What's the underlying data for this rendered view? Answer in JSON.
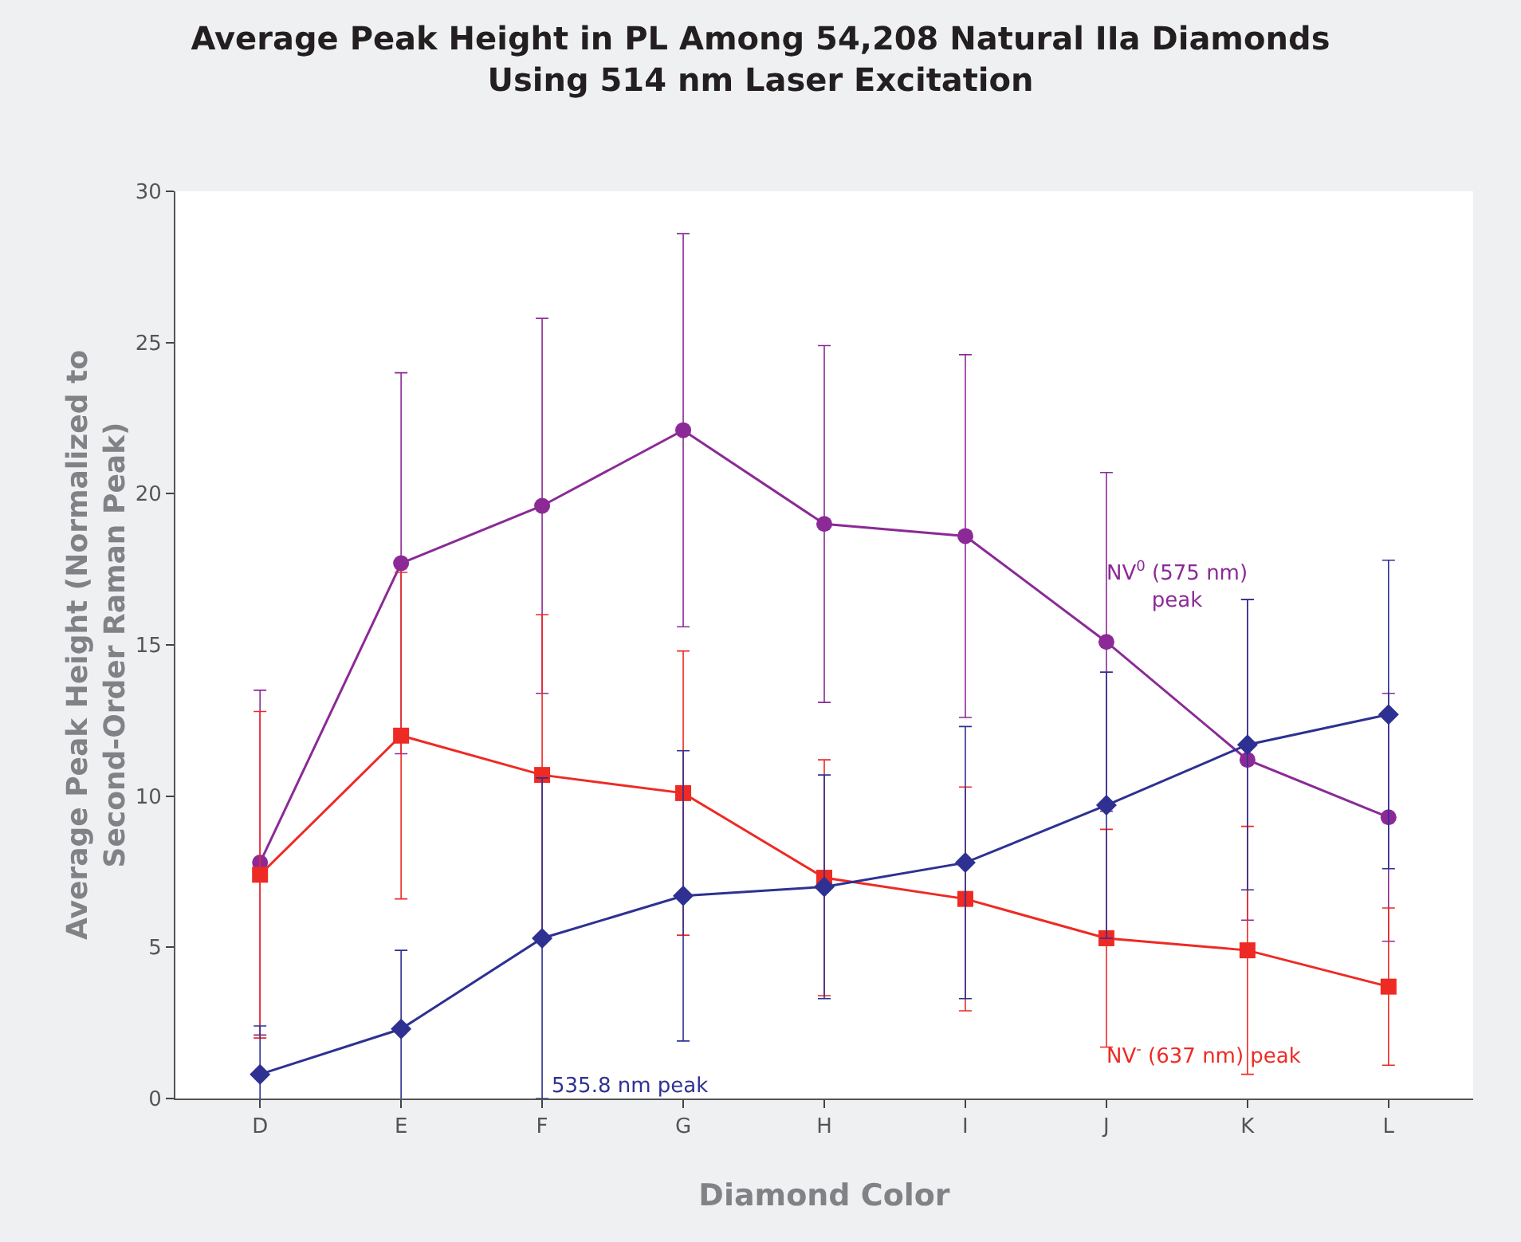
{
  "chart_data": {
    "type": "line",
    "title": "Average Peak Height in PL Among 54,208 Natural IIa Diamonds\nUsing 514 nm Laser Excitation",
    "xlabel": "Diamond Color",
    "ylabel": "Average Peak Height (Normalized to\nSecond-Order Raman Peak)",
    "categories": [
      "D",
      "E",
      "F",
      "G",
      "H",
      "I",
      "J",
      "K",
      "L"
    ],
    "ylim": [
      0,
      30
    ],
    "yticks": [
      0,
      5,
      10,
      15,
      20,
      25,
      30
    ],
    "grid": false,
    "line_style": "solid",
    "series": [
      {
        "color": "#8b2a96",
        "marker": "circle",
        "values": [
          7.8,
          17.7,
          19.6,
          22.1,
          19.0,
          18.6,
          15.1,
          11.2,
          9.3
        ],
        "errors": [
          5.7,
          6.3,
          6.2,
          6.5,
          5.9,
          6.0,
          5.6,
          5.3,
          4.1
        ]
      },
      {
        "color": "#ee2a24",
        "marker": "square",
        "values": [
          7.4,
          12.0,
          10.7,
          10.1,
          7.3,
          6.6,
          5.3,
          4.9,
          3.7
        ],
        "errors": [
          5.4,
          5.4,
          5.3,
          4.7,
          3.9,
          3.7,
          3.6,
          4.1,
          2.6
        ]
      },
      {
        "color": "#2e3192",
        "marker": "diamond",
        "values": [
          0.8,
          2.3,
          5.3,
          6.7,
          7.0,
          7.8,
          9.7,
          11.7,
          12.7
        ],
        "errors": [
          1.6,
          2.6,
          5.3,
          4.8,
          3.7,
          4.5,
          4.4,
          4.8,
          5.1
        ]
      }
    ],
    "annotations": [
      "535.8 nm peak",
      "NV$^{0}$ (575 nm)\npeak",
      "NV$^{-}$ (637 nm) peak"
    ]
  }
}
